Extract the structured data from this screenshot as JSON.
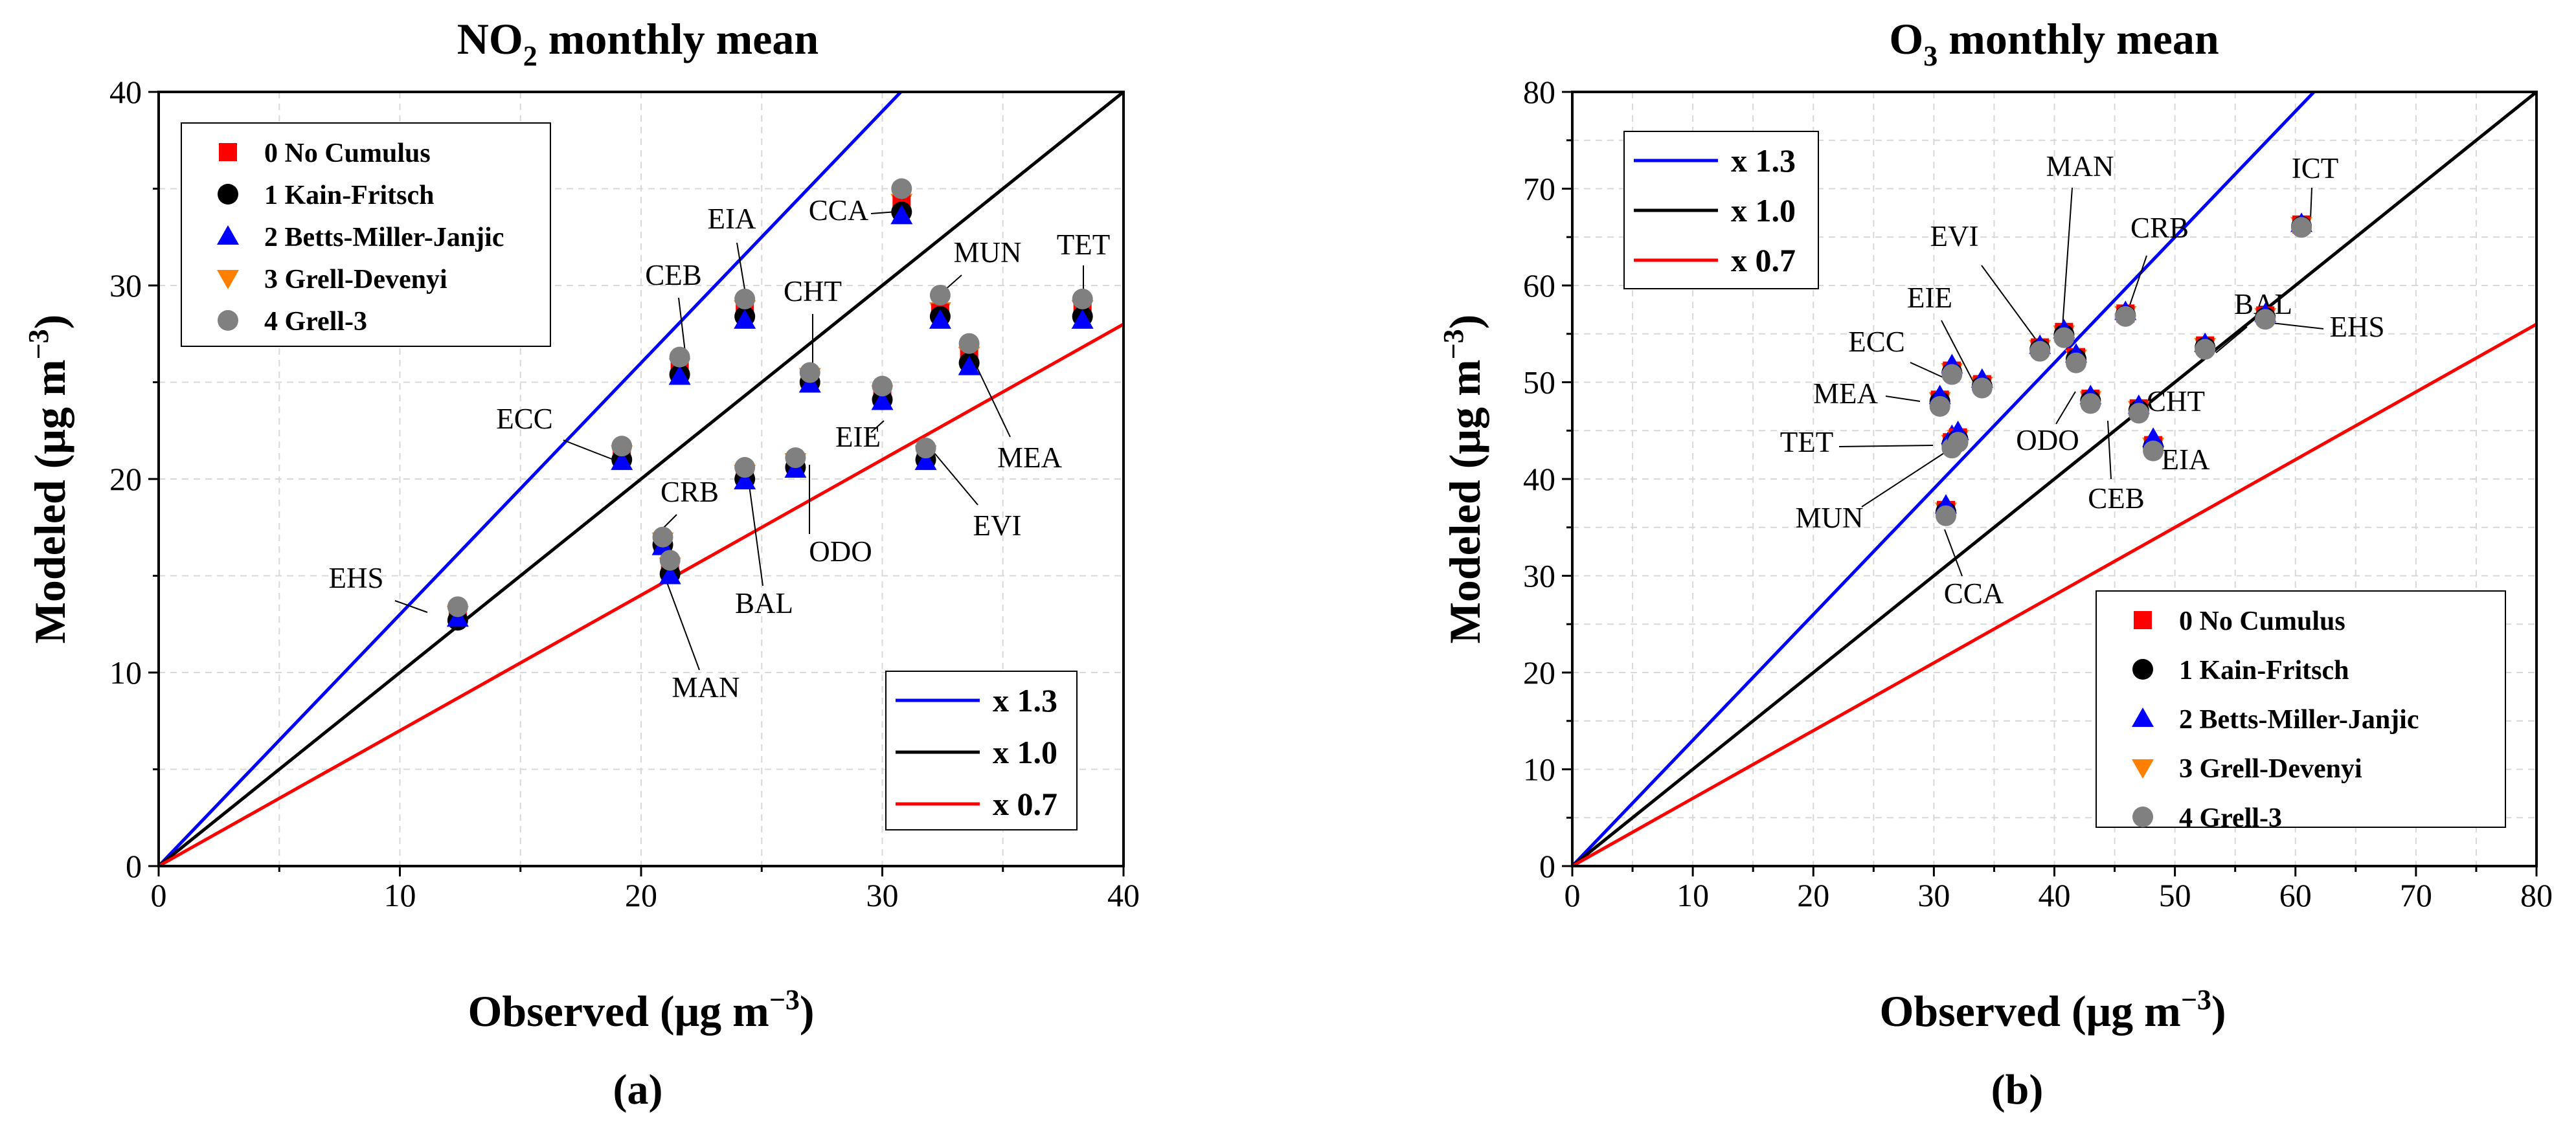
{
  "chart_data": [
    {
      "type": "scatter",
      "panel_label": "(a)",
      "title_main": "NO",
      "title_sub": "2",
      "title_rest": " monthly mean",
      "xlabel": "Observed (μg m",
      "ylabel": "Modeled (μg m",
      "unit_exp": "−3",
      "xlim": [
        0,
        40
      ],
      "ylim": [
        0,
        40
      ],
      "xticks": [
        "0",
        "10",
        "20",
        "30",
        "40"
      ],
      "yticks": [
        "0",
        "10",
        "20",
        "30",
        "40"
      ],
      "grid": true,
      "reference_lines": [
        {
          "label": "x 1.3",
          "slope": 1.3,
          "color": "#0000ff"
        },
        {
          "label": "x 1.0",
          "slope": 1.0,
          "color": "#000000"
        },
        {
          "label": "x 0.7",
          "slope": 0.7,
          "color": "#ff0000"
        }
      ],
      "series": [
        {
          "name": "0 No Cumulus",
          "marker": "square",
          "color": "#ff0000"
        },
        {
          "name": "1 Kain-Fritsch",
          "marker": "circle",
          "color": "#000000"
        },
        {
          "name": "2 Betts-Miller-Janjic",
          "marker": "triangle-up",
          "color": "#0000ff"
        },
        {
          "name": "3 Grell-Devenyi",
          "marker": "triangle-down",
          "color": "#ff8000"
        },
        {
          "name": "4 Grell-3",
          "marker": "circle",
          "color": "#808080"
        }
      ],
      "stations": [
        {
          "name": "EHS",
          "x": 12.4,
          "values": [
            12.9,
            12.7,
            12.8,
            13.0,
            13.4
          ]
        },
        {
          "name": "ECC",
          "x": 19.2,
          "values": [
            21.2,
            21.0,
            20.9,
            21.3,
            21.7
          ]
        },
        {
          "name": "CRB",
          "x": 20.9,
          "values": [
            16.7,
            16.6,
            16.5,
            16.8,
            17.0
          ]
        },
        {
          "name": "MAN",
          "x": 21.2,
          "values": [
            15.3,
            15.1,
            15.0,
            15.5,
            15.8
          ]
        },
        {
          "name": "CEB",
          "x": 21.6,
          "values": [
            25.6,
            25.4,
            25.3,
            25.8,
            26.3
          ]
        },
        {
          "name": "EIA",
          "x": 24.3,
          "values": [
            28.6,
            28.4,
            28.2,
            28.8,
            29.3
          ]
        },
        {
          "name": "BAL",
          "x": 24.3,
          "values": [
            20.2,
            20.0,
            19.9,
            20.3,
            20.6
          ]
        },
        {
          "name": "ODO",
          "x": 26.4,
          "values": [
            20.8,
            20.6,
            20.5,
            20.9,
            21.1
          ]
        },
        {
          "name": "CHT",
          "x": 27.0,
          "values": [
            25.2,
            25.0,
            24.9,
            25.3,
            25.5
          ]
        },
        {
          "name": "EIE",
          "x": 30.0,
          "values": [
            24.3,
            24.1,
            24.0,
            24.4,
            24.8
          ]
        },
        {
          "name": "CCA",
          "x": 30.8,
          "values": [
            34.2,
            33.8,
            33.6,
            34.3,
            35.0
          ]
        },
        {
          "name": "EVI",
          "x": 31.8,
          "values": [
            21.2,
            21.0,
            20.9,
            21.3,
            21.6
          ]
        },
        {
          "name": "MUN",
          "x": 32.4,
          "values": [
            28.6,
            28.4,
            28.2,
            28.7,
            29.5
          ]
        },
        {
          "name": "MEA",
          "x": 33.6,
          "values": [
            26.2,
            26.0,
            25.8,
            26.4,
            27.0
          ]
        },
        {
          "name": "TET",
          "x": 38.3,
          "values": [
            28.6,
            28.4,
            28.2,
            28.8,
            29.3
          ]
        }
      ]
    },
    {
      "type": "scatter",
      "panel_label": "(b)",
      "title_main": "O",
      "title_sub": "3",
      "title_rest": " monthly mean",
      "xlabel": "Observed (μg m",
      "ylabel": "Modeled (μg m",
      "unit_exp": "−3",
      "xlim": [
        0,
        80
      ],
      "ylim": [
        0,
        80
      ],
      "xticks": [
        "0",
        "10",
        "20",
        "30",
        "40",
        "50",
        "60",
        "70",
        "80"
      ],
      "yticks": [
        "0",
        "10",
        "20",
        "30",
        "40",
        "50",
        "60",
        "70",
        "80"
      ],
      "grid": true,
      "reference_lines": [
        {
          "label": "x 1.3",
          "slope": 1.3,
          "color": "#0000ff"
        },
        {
          "label": "x 1.0",
          "slope": 1.0,
          "color": "#000000"
        },
        {
          "label": "x 0.7",
          "slope": 0.7,
          "color": "#ff0000"
        }
      ],
      "series": [
        {
          "name": "0 No Cumulus",
          "marker": "square",
          "color": "#ff0000"
        },
        {
          "name": "1 Kain-Fritsch",
          "marker": "circle",
          "color": "#000000"
        },
        {
          "name": "2 Betts-Miller-Janjic",
          "marker": "triangle-up",
          "color": "#0000ff"
        },
        {
          "name": "3 Grell-Devenyi",
          "marker": "triangle-down",
          "color": "#ff8000"
        },
        {
          "name": "4 Grell-3",
          "marker": "circle",
          "color": "#808080"
        }
      ],
      "stations": [
        {
          "name": "ICT",
          "x": 60.5,
          "values": [
            66.3,
            66.1,
            66.4,
            66.2,
            66.0
          ]
        },
        {
          "name": "MAN",
          "x": 40.8,
          "values": [
            55.2,
            54.9,
            55.4,
            55.0,
            54.6
          ]
        },
        {
          "name": "EVI",
          "x": 38.8,
          "values": [
            53.6,
            53.4,
            53.8,
            53.5,
            53.2
          ]
        },
        {
          "name": "CRB",
          "x": 45.9,
          "values": [
            57.1,
            56.9,
            57.3,
            57.0,
            56.8
          ]
        },
        {
          "name": "BAL",
          "x": 52.5,
          "values": [
            53.8,
            53.6,
            54.0,
            53.7,
            53.4
          ]
        },
        {
          "name": "EHS",
          "x": 57.5,
          "values": [
            56.9,
            56.7,
            57.1,
            56.8,
            56.5
          ]
        },
        {
          "name": "EIE",
          "x": 34.0,
          "values": [
            49.8,
            49.6,
            50.3,
            49.7,
            49.4
          ]
        },
        {
          "name": "ECC",
          "x": 31.5,
          "values": [
            51.2,
            51.0,
            51.8,
            51.1,
            50.8
          ]
        },
        {
          "name": "MEA",
          "x": 30.5,
          "values": [
            48.2,
            48.0,
            48.6,
            48.1,
            47.5
          ]
        },
        {
          "name": "ODO",
          "x": 41.8,
          "values": [
            52.6,
            52.4,
            52.9,
            52.5,
            52.0
          ]
        },
        {
          "name": "CEB",
          "x": 43.0,
          "values": [
            48.3,
            48.1,
            48.6,
            48.2,
            47.8
          ]
        },
        {
          "name": "CHT",
          "x": 47.0,
          "values": [
            47.3,
            47.1,
            47.6,
            47.2,
            46.8
          ]
        },
        {
          "name": "EIA",
          "x": 48.2,
          "values": [
            43.5,
            43.3,
            44.2,
            43.4,
            42.9
          ]
        },
        {
          "name": "TET",
          "x": 31.5,
          "values": [
            43.8,
            43.6,
            44.5,
            43.7,
            43.2
          ]
        },
        {
          "name": "MUN",
          "x": 32.0,
          "values": [
            44.3,
            44.1,
            44.9,
            44.2,
            43.8
          ]
        },
        {
          "name": "CCA",
          "x": 31.0,
          "values": [
            36.8,
            36.6,
            37.3,
            36.7,
            36.2
          ]
        }
      ]
    }
  ]
}
